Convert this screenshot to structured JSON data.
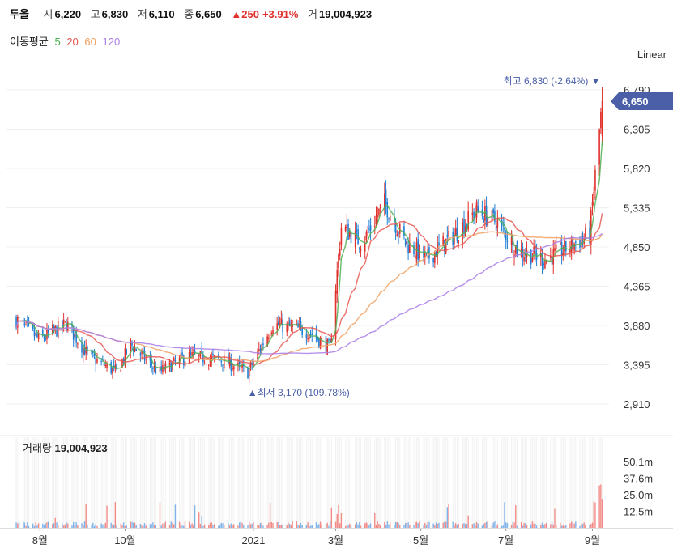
{
  "header": {
    "name": "두올",
    "open_label": "시",
    "open": "6,220",
    "high_label": "고",
    "high": "6,830",
    "low_label": "저",
    "low": "6,110",
    "close_label": "종",
    "close": "6,650",
    "change": "▲250",
    "change_pct": "+3.91%",
    "volume_label": "거",
    "volume": "19,004,923"
  },
  "moving_average": {
    "label": "이동평균",
    "periods": [
      {
        "value": "5",
        "color": "#4caf50"
      },
      {
        "value": "20",
        "color": "#e8554f"
      },
      {
        "value": "60",
        "color": "#f0a060"
      },
      {
        "value": "120",
        "color": "#a97de8"
      }
    ]
  },
  "scale_label": "Linear",
  "annotations": {
    "high": "최고 6,830 (-2.64%) ▼",
    "low": "▲최저 3,170 (109.78%)",
    "current_price": "6,650"
  },
  "volume_title": {
    "label": "거래량",
    "value": "19,004,923"
  },
  "colors": {
    "up": "#e0312d",
    "down": "#1e7fd6",
    "badge": "#4a5fa8"
  },
  "chart_data": {
    "type": "candlestick",
    "price_axis": {
      "ticks": [
        "2,910",
        "3,395",
        "3,880",
        "4,365",
        "4,850",
        "5,335",
        "5,820",
        "6,305",
        "6,790"
      ],
      "ylim": [
        2910,
        6790
      ]
    },
    "volume_axis": {
      "ticks": [
        "12.5m",
        "25.0m",
        "37.6m",
        "50.1m"
      ]
    },
    "x_ticks": [
      "8월",
      "10월",
      "2021",
      "3월",
      "5월",
      "7월",
      "9월"
    ],
    "close_series_approx": [
      {
        "x": "2020-07-15",
        "y": 3950
      },
      {
        "x": "2020-08-01",
        "y": 3700
      },
      {
        "x": "2020-08-20",
        "y": 3900
      },
      {
        "x": "2020-09-05",
        "y": 3500
      },
      {
        "x": "2020-09-25",
        "y": 3300
      },
      {
        "x": "2020-10-05",
        "y": 3650
      },
      {
        "x": "2020-10-25",
        "y": 3300
      },
      {
        "x": "2020-11-15",
        "y": 3500
      },
      {
        "x": "2020-12-10",
        "y": 3450
      },
      {
        "x": "2020-12-28",
        "y": 3300
      },
      {
        "x": "2021-01-15",
        "y": 3900
      },
      {
        "x": "2021-02-10",
        "y": 3800
      },
      {
        "x": "2021-02-25",
        "y": 3600
      },
      {
        "x": "2021-03-05",
        "y": 5100
      },
      {
        "x": "2021-03-20",
        "y": 4900
      },
      {
        "x": "2021-04-05",
        "y": 5400
      },
      {
        "x": "2021-04-20",
        "y": 4900
      },
      {
        "x": "2021-05-05",
        "y": 4700
      },
      {
        "x": "2021-05-25",
        "y": 5000
      },
      {
        "x": "2021-06-10",
        "y": 5300
      },
      {
        "x": "2021-06-25",
        "y": 5150
      },
      {
        "x": "2021-07-10",
        "y": 4800
      },
      {
        "x": "2021-07-30",
        "y": 4700
      },
      {
        "x": "2021-08-15",
        "y": 4850
      },
      {
        "x": "2021-08-30",
        "y": 5000
      },
      {
        "x": "2021-09-08",
        "y": 6650
      }
    ],
    "high": 6830,
    "low": 3170
  }
}
